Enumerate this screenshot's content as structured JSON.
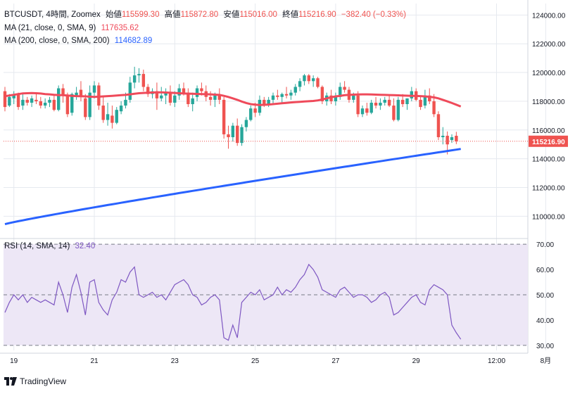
{
  "colors": {
    "up": "#26a69a",
    "down": "#ef5350",
    "ma21": "#ef4a5a",
    "ma200": "#2962ff",
    "rsi": "#7e57c2",
    "rsi_band": "#ede7f6",
    "grid": "#e6e9ef",
    "axis_text": "#6a6d78",
    "price_tag": "#ef5350"
  },
  "header": {
    "symbol": "BTCUSDT, 4時間, Zoomex",
    "open_label": "始値",
    "open": "115599.30",
    "high_label": "高値",
    "high": "115872.80",
    "low_label": "安値",
    "low": "115016.00",
    "close_label": "終値",
    "close": "115216.90",
    "change": "−382.40 (−0.33%)"
  },
  "ma21": {
    "label": "MA (21, close, 0, SMA, 9)",
    "value": "117635.62"
  },
  "ma200": {
    "label": "MA (200, close, 0, SMA, 200)",
    "value": "114682.89"
  },
  "rsi": {
    "label": "RSI (14, SMA, 14)",
    "value": "32.40"
  },
  "price_tag": "115216.90",
  "footer": {
    "brand": "TradingView"
  },
  "chart_data": [
    {
      "type": "candlestick",
      "title": "BTCUSDT, 4時間, Zoomex",
      "ylim": [
        108500,
        124800
      ],
      "yticks": [
        "124000.00",
        "122000.00",
        "120000.00",
        "118000.00",
        "116000.00",
        "114000.00",
        "112000.00",
        "110000.00"
      ],
      "ytick_values": [
        124000,
        122000,
        120000,
        118000,
        116000,
        114000,
        112000,
        110000
      ],
      "x_tick_labels": [
        "19",
        "21",
        "23",
        "25",
        "27",
        "29",
        "12:00",
        "8月",
        "12:00"
      ],
      "x_tick_index": [
        2,
        20,
        38,
        56,
        74,
        92,
        110,
        121,
        139
      ],
      "candles": [
        [
          118700,
          119000,
          117300,
          117600
        ],
        [
          117700,
          118500,
          117600,
          118300
        ],
        [
          118200,
          118700,
          117800,
          118500
        ],
        [
          118500,
          118600,
          117400,
          117600
        ],
        [
          117700,
          118500,
          117400,
          118100
        ],
        [
          118100,
          118300,
          117700,
          117900
        ],
        [
          117900,
          118400,
          117600,
          118200
        ],
        [
          118100,
          118500,
          117800,
          118000
        ],
        [
          118000,
          118300,
          117500,
          117700
        ],
        [
          117700,
          118200,
          117500,
          117900
        ],
        [
          117900,
          118300,
          117600,
          118100
        ],
        [
          118100,
          118500,
          117300,
          117400
        ],
        [
          117400,
          119100,
          117300,
          118900
        ],
        [
          118900,
          119200,
          117900,
          118400
        ],
        [
          118400,
          118600,
          116900,
          117100
        ],
        [
          117200,
          118600,
          117000,
          118500
        ],
        [
          118400,
          119000,
          118100,
          118600
        ],
        [
          118800,
          119400,
          118000,
          118300
        ],
        [
          118200,
          118500,
          116700,
          116900
        ],
        [
          116900,
          119100,
          116700,
          118600
        ],
        [
          118600,
          119400,
          118200,
          119100
        ],
        [
          119100,
          119300,
          117400,
          117700
        ],
        [
          117700,
          118300,
          116500,
          116700
        ],
        [
          116700,
          117900,
          116300,
          117100
        ],
        [
          117000,
          117700,
          116100,
          116500
        ],
        [
          116500,
          117600,
          116400,
          117400
        ],
        [
          117300,
          118000,
          117100,
          117700
        ],
        [
          117700,
          118600,
          117500,
          118100
        ],
        [
          118100,
          119700,
          117900,
          119300
        ],
        [
          119300,
          120400,
          118900,
          119800
        ],
        [
          119800,
          120300,
          119300,
          119900
        ],
        [
          119900,
          120200,
          118700,
          119000
        ],
        [
          119000,
          119200,
          118300,
          118500
        ],
        [
          118500,
          118900,
          118200,
          118700
        ],
        [
          118700,
          119300,
          117400,
          118200
        ],
        [
          118200,
          119000,
          118000,
          118400
        ],
        [
          118400,
          118900,
          117800,
          118600
        ],
        [
          118600,
          119100,
          117700,
          117900
        ],
        [
          117900,
          118700,
          117600,
          118400
        ],
        [
          118400,
          119200,
          118100,
          118900
        ],
        [
          118900,
          119300,
          118400,
          118600
        ],
        [
          118600,
          118900,
          117600,
          117800
        ],
        [
          117800,
          118600,
          117300,
          118200
        ],
        [
          118300,
          119100,
          118000,
          118900
        ],
        [
          118900,
          119300,
          118400,
          118700
        ],
        [
          118700,
          119100,
          118000,
          118300
        ],
        [
          118300,
          118700,
          117700,
          118100
        ],
        [
          118100,
          118600,
          117600,
          118400
        ],
        [
          118400,
          118900,
          117800,
          118100
        ],
        [
          118100,
          118300,
          115400,
          115700
        ],
        [
          115700,
          116300,
          114700,
          115500
        ],
        [
          115500,
          116500,
          115200,
          116300
        ],
        [
          116300,
          116800,
          114900,
          115100
        ],
        [
          115100,
          116400,
          114900,
          116200
        ],
        [
          116200,
          116900,
          115900,
          116700
        ],
        [
          116700,
          117700,
          116600,
          117500
        ],
        [
          117500,
          117900,
          116900,
          117200
        ],
        [
          117200,
          118400,
          117000,
          118100
        ],
        [
          118100,
          118300,
          117600,
          117800
        ],
        [
          117800,
          118300,
          117600,
          118100
        ],
        [
          118100,
          118600,
          117800,
          118400
        ],
        [
          118400,
          118800,
          118100,
          118300
        ],
        [
          118300,
          118600,
          117900,
          118500
        ],
        [
          118500,
          119000,
          118200,
          118400
        ],
        [
          118400,
          118800,
          118100,
          118600
        ],
        [
          118600,
          119200,
          118400,
          119000
        ],
        [
          119000,
          119600,
          118700,
          119400
        ],
        [
          119400,
          119900,
          119100,
          119800
        ],
        [
          119800,
          119900,
          119200,
          119400
        ],
        [
          119400,
          119800,
          119000,
          119600
        ],
        [
          119600,
          119700,
          118900,
          119000
        ],
        [
          119000,
          119100,
          117800,
          118000
        ],
        [
          118000,
          118600,
          117700,
          118400
        ],
        [
          118400,
          118800,
          117800,
          118000
        ],
        [
          118000,
          118600,
          117700,
          118300
        ],
        [
          118300,
          119300,
          118100,
          119000
        ],
        [
          119000,
          119400,
          118600,
          118800
        ],
        [
          118800,
          119000,
          117900,
          118100
        ],
        [
          118100,
          118600,
          117900,
          118400
        ],
        [
          118400,
          118700,
          116900,
          117100
        ],
        [
          117100,
          117700,
          116900,
          117500
        ],
        [
          117500,
          117900,
          117000,
          117200
        ],
        [
          117200,
          118100,
          117100,
          117900
        ],
        [
          117900,
          118300,
          117500,
          117700
        ],
        [
          117700,
          118200,
          117400,
          117900
        ],
        [
          117900,
          118300,
          117700,
          118100
        ],
        [
          118100,
          118400,
          117600,
          117700
        ],
        [
          117700,
          118200,
          116600,
          116700
        ],
        [
          116700,
          118300,
          116600,
          118100
        ],
        [
          118100,
          118500,
          117600,
          117800
        ],
        [
          117800,
          118200,
          117400,
          118200
        ],
        [
          118200,
          119000,
          118000,
          118700
        ],
        [
          118700,
          118900,
          118000,
          118100
        ],
        [
          118100,
          118400,
          117400,
          117600
        ],
        [
          117700,
          118800,
          117500,
          118400
        ],
        [
          118400,
          118900,
          117800,
          118000
        ],
        [
          118000,
          118500,
          116900,
          117100
        ],
        [
          117100,
          117300,
          115300,
          115500
        ],
        [
          115500,
          116200,
          115000,
          115600
        ],
        [
          115600,
          115900,
          114300,
          115000
        ],
        [
          115300,
          115700,
          115100,
          115500
        ],
        [
          115599.3,
          115872.8,
          115016,
          115216.9
        ]
      ],
      "series": [
        {
          "name": "MA (21, close, 0, SMA, 9)",
          "values": [
            118350,
            118400,
            118450,
            118500,
            118550,
            118560,
            118570,
            118560,
            118540,
            118500,
            118480,
            118450,
            118430,
            118420,
            118400,
            118380,
            118360,
            118350,
            118340,
            118320,
            118300,
            118320,
            118340,
            118360,
            118380,
            118400,
            118420,
            118440,
            118480,
            118520,
            118560,
            118580,
            118600,
            118610,
            118620,
            118620,
            118610,
            118600,
            118580,
            118560,
            118540,
            118530,
            118520,
            118510,
            118500,
            118490,
            118480,
            118460,
            118440,
            118380,
            118300,
            118200,
            118100,
            117980,
            117880,
            117800,
            117760,
            117740,
            117750,
            117770,
            117800,
            117830,
            117860,
            117890,
            117920,
            117940,
            117960,
            117980,
            118000,
            118020,
            118060,
            118120,
            118200,
            118280,
            118340,
            118380,
            118420,
            118440,
            118460,
            118470,
            118480,
            118480,
            118470,
            118460,
            118450,
            118440,
            118430,
            118420,
            118410,
            118400,
            118390,
            118380,
            118370,
            118360,
            118340,
            118310,
            118270,
            118200,
            118100,
            117990,
            117880,
            117760,
            117635.62
          ]
        },
        {
          "name": "MA (200, close, 0, SMA, 200)",
          "values": [
            109450,
            109540,
            109630,
            109720,
            109810,
            109900,
            109990,
            110080,
            110170,
            110260,
            110350,
            110440,
            110530,
            110620,
            110710,
            110800,
            110890,
            110980,
            111070,
            111160,
            111250,
            111340,
            111430,
            111520,
            111610,
            111700,
            111790,
            111880,
            111970,
            112060,
            112150,
            112240,
            112330,
            112420,
            112510,
            112600,
            112690,
            112780,
            112870,
            112960,
            113050,
            113140,
            113230,
            113320,
            113410,
            113500,
            113590,
            113680,
            113770,
            113860,
            113950,
            114040,
            114130,
            114220,
            114310,
            114400,
            114490,
            114580,
            114670,
            114760,
            114850,
            114940,
            115030,
            115120,
            115210,
            115300,
            115390,
            115480,
            115570,
            115660,
            115750,
            115840,
            115930,
            116020,
            116110,
            116200,
            116290,
            116380,
            116470,
            116560,
            116650,
            116740,
            116830,
            116920,
            117010,
            117100,
            117190,
            117280,
            117370,
            117460,
            117550,
            117640,
            117730,
            117820,
            117910,
            118000,
            118090,
            118180,
            118270,
            118360,
            118450,
            118540,
            114682.89
          ]
        }
      ]
    },
    {
      "type": "line",
      "title": "RSI (14, SMA, 14)",
      "ylim": [
        28,
        72
      ],
      "yticks": [
        "70.00",
        "60.00",
        "50.00",
        "40.00",
        "30.00"
      ],
      "ytick_values": [
        70,
        60,
        50,
        40,
        30
      ],
      "bands": [
        30,
        50,
        70
      ],
      "values": [
        43,
        47,
        50,
        48,
        50,
        47,
        49,
        48,
        47,
        48,
        47,
        46,
        55,
        50,
        43,
        53,
        58,
        51,
        42,
        55,
        56,
        47,
        44,
        42,
        48,
        51,
        56,
        55,
        59,
        61,
        50,
        49,
        50,
        51,
        49,
        50,
        48,
        51,
        54,
        55,
        56,
        54,
        50,
        49,
        46,
        47,
        49,
        50,
        48,
        33,
        32,
        38,
        33,
        47,
        49,
        51,
        50,
        52,
        48,
        49,
        50,
        53,
        50,
        52,
        51,
        53,
        56,
        58,
        62,
        60,
        57,
        52,
        51,
        50,
        49,
        52,
        53,
        51,
        49,
        50,
        50,
        49,
        47,
        48,
        50,
        51,
        49,
        42,
        43,
        45,
        47,
        49,
        50,
        47,
        46,
        52,
        54,
        53,
        52,
        50,
        38,
        35,
        32.4
      ]
    }
  ]
}
